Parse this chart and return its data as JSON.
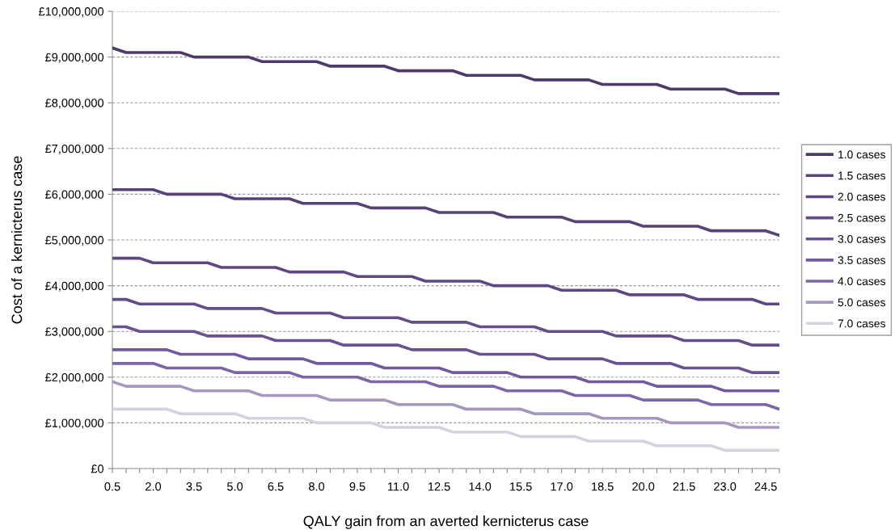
{
  "chart_data": {
    "type": "line",
    "xlabel": "QALY gain from an averted kernicterus case",
    "ylabel": "Cost of a kernicterus case",
    "categories": [
      "0.5",
      null,
      null,
      "2.0",
      null,
      null,
      "3.5",
      null,
      null,
      "5.0",
      null,
      null,
      "6.5",
      null,
      null,
      "8.0",
      null,
      null,
      "9.5",
      null,
      null,
      "11.0",
      null,
      null,
      "12.5",
      null,
      null,
      "14.0",
      null,
      null,
      "15.5",
      null,
      null,
      "17.0",
      null,
      null,
      "18.5",
      null,
      null,
      "20.0",
      null,
      null,
      "21.5",
      null,
      null,
      "23.0",
      null,
      null,
      "24.5",
      null
    ],
    "ylim": [
      0,
      10000000
    ],
    "yticks": [
      {
        "value": 0,
        "label": "£0"
      },
      {
        "value": 1000000,
        "label": "£1,000,000"
      },
      {
        "value": 2000000,
        "label": "£2,000,000"
      },
      {
        "value": 3000000,
        "label": "£3,000,000"
      },
      {
        "value": 4000000,
        "label": "£4,000,000"
      },
      {
        "value": 5000000,
        "label": "£5,000,000"
      },
      {
        "value": 6000000,
        "label": "£6,000,000"
      },
      {
        "value": 7000000,
        "label": "£7,000,000"
      },
      {
        "value": 8000000,
        "label": "£8,000,000"
      },
      {
        "value": 9000000,
        "label": "£9,000,000"
      },
      {
        "value": 10000000,
        "label": "£10,000,000"
      }
    ],
    "grid": "y",
    "legend": "right",
    "marker": "none",
    "line_style": "solid",
    "series": [
      {
        "name": "1.0 cases",
        "color": "#4e3a6a",
        "values": [
          9200000,
          9100000,
          9100000,
          9100000,
          9100000,
          9100000,
          9000000,
          9000000,
          9000000,
          9000000,
          9000000,
          8900000,
          8900000,
          8900000,
          8900000,
          8900000,
          8800000,
          8800000,
          8800000,
          8800000,
          8800000,
          8700000,
          8700000,
          8700000,
          8700000,
          8700000,
          8600000,
          8600000,
          8600000,
          8600000,
          8600000,
          8500000,
          8500000,
          8500000,
          8500000,
          8500000,
          8400000,
          8400000,
          8400000,
          8400000,
          8400000,
          8300000,
          8300000,
          8300000,
          8300000,
          8300000,
          8200000,
          8200000,
          8200000,
          8200000
        ]
      },
      {
        "name": "1.5 cases",
        "color": "#564276",
        "values": [
          6100000,
          6100000,
          6100000,
          6100000,
          6000000,
          6000000,
          6000000,
          6000000,
          6000000,
          5900000,
          5900000,
          5900000,
          5900000,
          5900000,
          5800000,
          5800000,
          5800000,
          5800000,
          5800000,
          5700000,
          5700000,
          5700000,
          5700000,
          5700000,
          5600000,
          5600000,
          5600000,
          5600000,
          5600000,
          5500000,
          5500000,
          5500000,
          5500000,
          5500000,
          5400000,
          5400000,
          5400000,
          5400000,
          5400000,
          5300000,
          5300000,
          5300000,
          5300000,
          5300000,
          5200000,
          5200000,
          5200000,
          5200000,
          5200000,
          5100000
        ]
      },
      {
        "name": "2.0 cases",
        "color": "#5f4882",
        "values": [
          4600000,
          4600000,
          4600000,
          4500000,
          4500000,
          4500000,
          4500000,
          4500000,
          4400000,
          4400000,
          4400000,
          4400000,
          4400000,
          4300000,
          4300000,
          4300000,
          4300000,
          4300000,
          4200000,
          4200000,
          4200000,
          4200000,
          4200000,
          4100000,
          4100000,
          4100000,
          4100000,
          4100000,
          4000000,
          4000000,
          4000000,
          4000000,
          4000000,
          3900000,
          3900000,
          3900000,
          3900000,
          3900000,
          3800000,
          3800000,
          3800000,
          3800000,
          3800000,
          3700000,
          3700000,
          3700000,
          3700000,
          3700000,
          3600000,
          3600000
        ]
      },
      {
        "name": "2.5 cases",
        "color": "#654d8a",
        "values": [
          3700000,
          3700000,
          3600000,
          3600000,
          3600000,
          3600000,
          3600000,
          3500000,
          3500000,
          3500000,
          3500000,
          3500000,
          3400000,
          3400000,
          3400000,
          3400000,
          3400000,
          3300000,
          3300000,
          3300000,
          3300000,
          3300000,
          3200000,
          3200000,
          3200000,
          3200000,
          3200000,
          3100000,
          3100000,
          3100000,
          3100000,
          3100000,
          3000000,
          3000000,
          3000000,
          3000000,
          3000000,
          2900000,
          2900000,
          2900000,
          2900000,
          2900000,
          2800000,
          2800000,
          2800000,
          2800000,
          2800000,
          2700000,
          2700000,
          2700000
        ]
      },
      {
        "name": "3.0 cases",
        "color": "#6a5192",
        "values": [
          3100000,
          3100000,
          3000000,
          3000000,
          3000000,
          3000000,
          3000000,
          2900000,
          2900000,
          2900000,
          2900000,
          2900000,
          2800000,
          2800000,
          2800000,
          2800000,
          2800000,
          2700000,
          2700000,
          2700000,
          2700000,
          2700000,
          2600000,
          2600000,
          2600000,
          2600000,
          2600000,
          2500000,
          2500000,
          2500000,
          2500000,
          2500000,
          2400000,
          2400000,
          2400000,
          2400000,
          2400000,
          2300000,
          2300000,
          2300000,
          2300000,
          2300000,
          2200000,
          2200000,
          2200000,
          2200000,
          2200000,
          2100000,
          2100000,
          2100000
        ]
      },
      {
        "name": "3.5 cases",
        "color": "#72589c",
        "values": [
          2600000,
          2600000,
          2600000,
          2600000,
          2600000,
          2500000,
          2500000,
          2500000,
          2500000,
          2500000,
          2400000,
          2400000,
          2400000,
          2400000,
          2400000,
          2300000,
          2300000,
          2300000,
          2300000,
          2300000,
          2200000,
          2200000,
          2200000,
          2200000,
          2200000,
          2100000,
          2100000,
          2100000,
          2100000,
          2100000,
          2000000,
          2000000,
          2000000,
          2000000,
          2000000,
          1900000,
          1900000,
          1900000,
          1900000,
          1900000,
          1800000,
          1800000,
          1800000,
          1800000,
          1800000,
          1700000,
          1700000,
          1700000,
          1700000,
          1700000
        ]
      },
      {
        "name": "4.0 cases",
        "color": "#7e65a8",
        "values": [
          2300000,
          2300000,
          2300000,
          2300000,
          2200000,
          2200000,
          2200000,
          2200000,
          2200000,
          2100000,
          2100000,
          2100000,
          2100000,
          2100000,
          2000000,
          2000000,
          2000000,
          2000000,
          2000000,
          1900000,
          1900000,
          1900000,
          1900000,
          1900000,
          1800000,
          1800000,
          1800000,
          1800000,
          1800000,
          1700000,
          1700000,
          1700000,
          1700000,
          1700000,
          1600000,
          1600000,
          1600000,
          1600000,
          1600000,
          1500000,
          1500000,
          1500000,
          1500000,
          1500000,
          1400000,
          1400000,
          1400000,
          1400000,
          1400000,
          1300000
        ]
      },
      {
        "name": "5.0 cases",
        "color": "#a597bd",
        "values": [
          1900000,
          1800000,
          1800000,
          1800000,
          1800000,
          1800000,
          1700000,
          1700000,
          1700000,
          1700000,
          1700000,
          1600000,
          1600000,
          1600000,
          1600000,
          1600000,
          1500000,
          1500000,
          1500000,
          1500000,
          1500000,
          1400000,
          1400000,
          1400000,
          1400000,
          1400000,
          1300000,
          1300000,
          1300000,
          1300000,
          1300000,
          1200000,
          1200000,
          1200000,
          1200000,
          1200000,
          1100000,
          1100000,
          1100000,
          1100000,
          1100000,
          1000000,
          1000000,
          1000000,
          1000000,
          1000000,
          900000,
          900000,
          900000,
          900000
        ]
      },
      {
        "name": "7.0 cases",
        "color": "#d5d1e1",
        "values": [
          1300000,
          1300000,
          1300000,
          1300000,
          1300000,
          1200000,
          1200000,
          1200000,
          1200000,
          1200000,
          1100000,
          1100000,
          1100000,
          1100000,
          1100000,
          1000000,
          1000000,
          1000000,
          1000000,
          1000000,
          900000,
          900000,
          900000,
          900000,
          900000,
          800000,
          800000,
          800000,
          800000,
          800000,
          700000,
          700000,
          700000,
          700000,
          700000,
          600000,
          600000,
          600000,
          600000,
          600000,
          500000,
          500000,
          500000,
          500000,
          500000,
          400000,
          400000,
          400000,
          400000,
          400000
        ]
      }
    ]
  }
}
